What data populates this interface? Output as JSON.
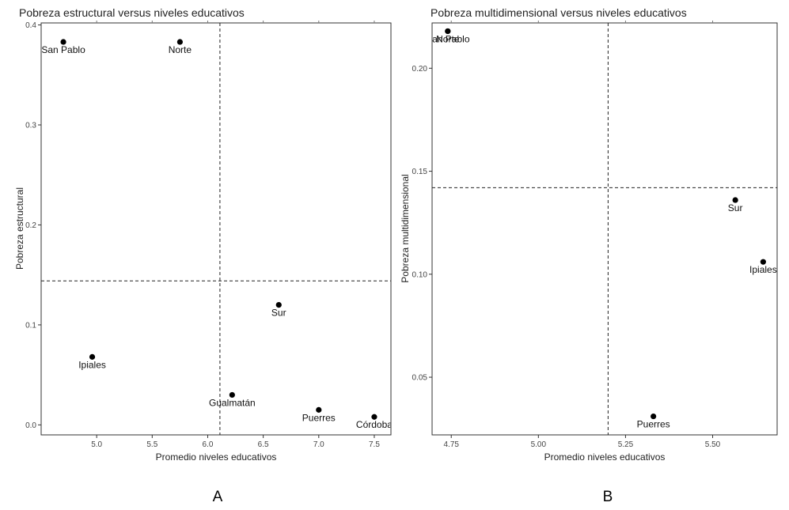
{
  "chart_data": [
    {
      "type": "scatter",
      "panel_label": "A",
      "title": "Pobreza estructural versus niveles educativos",
      "xlabel": "Promedio niveles educativos",
      "ylabel": "Pobreza estructural",
      "xlim": [
        4.5,
        7.65
      ],
      "ylim": [
        -0.01,
        0.402
      ],
      "xticks": [
        5.0,
        5.5,
        6.0,
        6.5,
        7.0,
        7.5
      ],
      "xtick_labels": [
        "5.0",
        "5.5",
        "6.0",
        "6.5",
        "7.0",
        "7.5"
      ],
      "yticks": [
        0.0,
        0.1,
        0.2,
        0.3,
        0.4
      ],
      "ytick_labels": [
        "0.0",
        "0.1",
        "0.2",
        "0.3",
        "0.4"
      ],
      "vline": 6.11,
      "hline": 0.144,
      "grid": false,
      "points": [
        {
          "label": "San Pablo",
          "shown_label": "an Pablo",
          "x": 4.7,
          "y": 0.383
        },
        {
          "label": "Norte",
          "shown_label": "Norte",
          "x": 5.75,
          "y": 0.383
        },
        {
          "label": "Sur",
          "shown_label": "Sur",
          "x": 6.64,
          "y": 0.12
        },
        {
          "label": "Ipiales",
          "shown_label": "Ipiales",
          "x": 4.96,
          "y": 0.068
        },
        {
          "label": "Gualmatán",
          "shown_label": "Gualmatán",
          "x": 6.22,
          "y": 0.03
        },
        {
          "label": "Puerres",
          "shown_label": "Puerres",
          "x": 7.0,
          "y": 0.015
        },
        {
          "label": "Córdoba",
          "shown_label": "Córdoba",
          "x": 7.5,
          "y": 0.008
        }
      ]
    },
    {
      "type": "scatter",
      "panel_label": "B",
      "title": "Pobreza multidimensional versus niveles educativos",
      "xlabel": "Promedio niveles educativos",
      "ylabel": "Pobreza multidimensional",
      "xlim": [
        4.695,
        5.685
      ],
      "ylim": [
        0.022,
        0.222
      ],
      "xticks": [
        4.75,
        5.0,
        5.25,
        5.5
      ],
      "xtick_labels": [
        "4.75",
        "5.00",
        "5.25",
        "5.50"
      ],
      "yticks": [
        0.05,
        0.1,
        0.15,
        0.2
      ],
      "ytick_labels": [
        "0.05",
        "0.10",
        "0.15",
        "0.20"
      ],
      "vline": 5.2,
      "hline": 0.142,
      "grid": false,
      "points": [
        {
          "label": "San Pablo",
          "shown_label": "an Pablo",
          "x": 4.74,
          "y": 0.218
        },
        {
          "label": "Norte",
          "shown_label": "Norte",
          "x": 4.74,
          "y": 0.218
        },
        {
          "label": "Sur",
          "shown_label": "Sur",
          "x": 5.565,
          "y": 0.136
        },
        {
          "label": "Ipiales",
          "shown_label": "Ipiales",
          "x": 5.645,
          "y": 0.106
        },
        {
          "label": "Puerres",
          "shown_label": "Puerres",
          "x": 5.33,
          "y": 0.031
        }
      ]
    }
  ]
}
